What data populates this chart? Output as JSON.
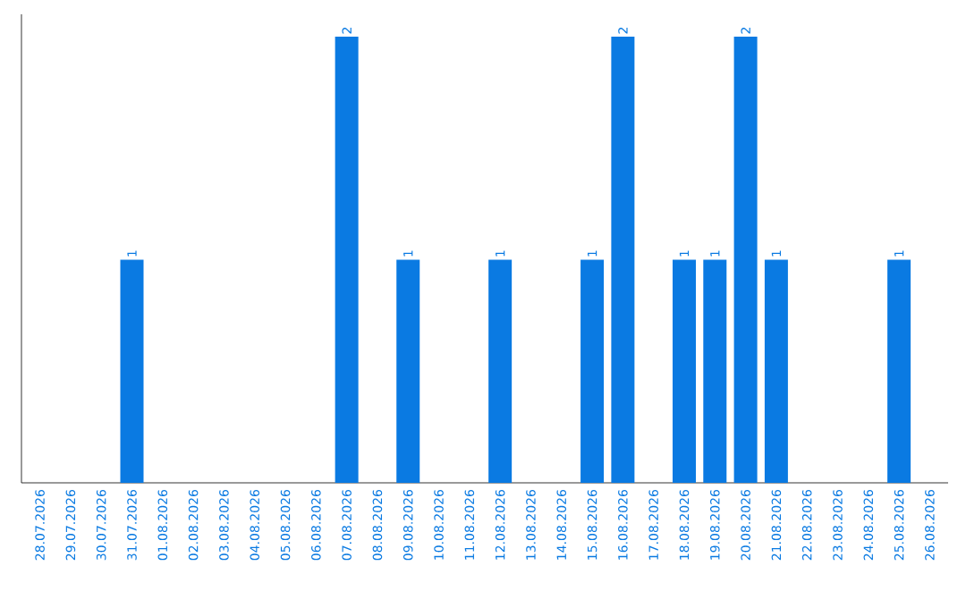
{
  "chart_data": {
    "type": "bar",
    "categories": [
      "28.07.2026",
      "29.07.2026",
      "30.07.2026",
      "31.07.2026",
      "01.08.2026",
      "02.08.2026",
      "03.08.2026",
      "04.08.2026",
      "05.08.2026",
      "06.08.2026",
      "07.08.2026",
      "08.08.2026",
      "09.08.2026",
      "10.08.2026",
      "11.08.2026",
      "12.08.2026",
      "13.08.2026",
      "14.08.2026",
      "15.08.2026",
      "16.08.2026",
      "17.08.2026",
      "18.08.2026",
      "19.08.2026",
      "20.08.2026",
      "21.08.2026",
      "22.08.2026",
      "23.08.2026",
      "24.08.2026",
      "25.08.2026",
      "26.08.2026"
    ],
    "values": [
      0,
      0,
      0,
      1,
      0,
      0,
      0,
      0,
      0,
      0,
      2,
      0,
      1,
      0,
      0,
      1,
      0,
      0,
      1,
      2,
      0,
      1,
      1,
      2,
      1,
      0,
      0,
      0,
      1,
      0
    ],
    "value_labels": [
      null,
      null,
      null,
      "1",
      null,
      null,
      null,
      null,
      null,
      null,
      "2",
      null,
      "1",
      null,
      null,
      "1",
      null,
      null,
      "1",
      "2",
      null,
      "1",
      "1",
      "2",
      "1",
      null,
      null,
      null,
      "1",
      null
    ],
    "color": "#0a7ae2",
    "tick_labels": "x"
  }
}
